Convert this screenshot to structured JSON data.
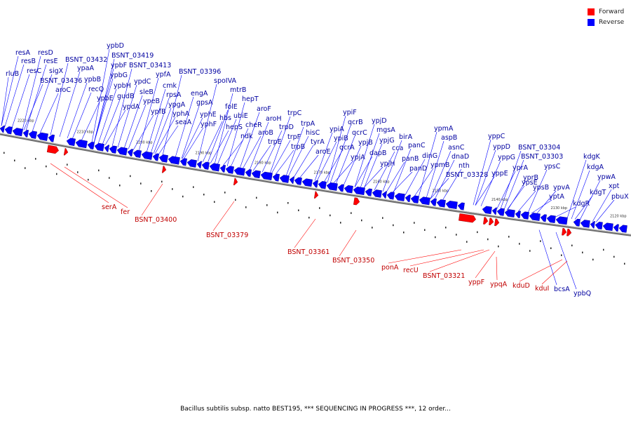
{
  "legend": {
    "forward": {
      "label": "Forward",
      "color": "#ff0000"
    },
    "reverse": {
      "label": "Reverse",
      "color": "#0000ff"
    }
  },
  "caption": "Bacillus subtilis subsp. natto BEST195, *** SEQUENCING IN PROGRESS ***, 12 order...",
  "scale_ticks": [
    "2220 kbp",
    "2210 kbp",
    "2200 kbp",
    "2190 kbp",
    "2180 kbp",
    "2170 kbp",
    "2160 kbp",
    "2150 kbp",
    "2140 kbp",
    "2130 kbp",
    "2120 kbp"
  ],
  "reverse_labels": [
    "rluB",
    "resA",
    "resB",
    "resD",
    "resC",
    "resE",
    "sigX",
    "BSNT_03436",
    "aroC",
    "BSNT_03432",
    "ypaA",
    "ypbB",
    "recQ",
    "ypbE",
    "ypbD",
    "BSNT_03419",
    "ypbF",
    "ypbG",
    "ypbH",
    "gudB",
    "ypdA",
    "BSNT_03413",
    "ypdC",
    "sleB",
    "ypeB",
    "ypfB",
    "ypfA",
    "cmk",
    "rpsA",
    "ypgA",
    "yphA",
    "seaA",
    "BSNT_03396",
    "engA",
    "gpsA",
    "yphE",
    "yphF",
    "spoIVA",
    "mtrB",
    "hepT",
    "folE",
    "hbs",
    "ubiE",
    "hepS",
    "cheR",
    "ndk",
    "aroF",
    "aroH",
    "aroB",
    "trpE",
    "trpC",
    "trpD",
    "trpF",
    "trpB",
    "trpA",
    "hisC",
    "tyrA",
    "aroE",
    "ypiF",
    "ypiA",
    "qcrB",
    "ypiB",
    "qcrC",
    "qcrA",
    "ypjB",
    "ypjA",
    "ypjD",
    "mgsA",
    "ypjG",
    "dapB",
    "cca",
    "ypjH",
    "birA",
    "panB",
    "panC",
    "panD",
    "dinG",
    "ypmB",
    "ypmA",
    "aspB",
    "asnC",
    "dnaD",
    "nth",
    "BSNT_03328",
    "yppC",
    "yppD",
    "yppG",
    "yppE",
    "yprA",
    "ypsE",
    "BSNT_03304",
    "BSNT_03303",
    "ypsC",
    "yprB",
    "ypsB",
    "yptA",
    "ypvA",
    "kdgK",
    "kdgA",
    "kdgT",
    "ypwA",
    "kdgR",
    "xpt",
    "pbuX",
    "bcsA",
    "ypbQ"
  ],
  "forward_labels": [
    "serA",
    "fer",
    "BSNT_03400",
    "BSNT_03379",
    "BSNT_03361",
    "BSNT_03350",
    "ponA",
    "recU",
    "BSNT_03321",
    "yppF",
    "ypqA",
    "kduD",
    "kduI"
  ]
}
